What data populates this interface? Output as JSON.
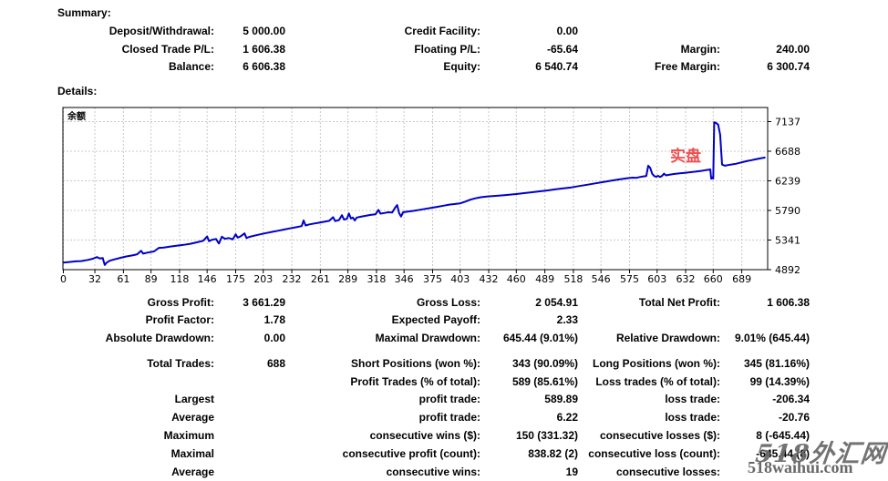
{
  "summary": {
    "heading": "Summary:",
    "rows": [
      {
        "cells": [
          "Deposit/Withdrawal:",
          "5 000.00",
          "Credit Facility:",
          "0.00",
          "",
          ""
        ]
      },
      {
        "cells": [
          "Closed Trade P/L:",
          "1 606.38",
          "Floating P/L:",
          "-65.64",
          "Margin:",
          "240.00"
        ]
      },
      {
        "cells": [
          "Balance:",
          "6 606.38",
          "Equity:",
          "6 540.74",
          "Free Margin:",
          "6 300.74"
        ]
      }
    ]
  },
  "details": {
    "heading": "Details:",
    "rows": [
      {
        "y": 324,
        "cells": [
          "Gross Profit:",
          "3 661.29",
          "Gross Loss:",
          "2 054.91",
          "Total Net Profit:",
          "1 606.38"
        ]
      },
      {
        "y": 343,
        "cells": [
          "Profit Factor:",
          "1.78",
          "Expected Payoff:",
          "2.33",
          "",
          ""
        ]
      },
      {
        "y": 363,
        "cells": [
          "Absolute Drawdown:",
          "0.00",
          "Maximal Drawdown:",
          "645.44 (9.01%)",
          "Relative Drawdown:",
          "9.01% (645.44)"
        ]
      },
      {
        "y": 391,
        "cells": [
          "Total Trades:",
          "688",
          "Short Positions (won %):",
          "343 (90.09%)",
          "Long Positions (won %):",
          "345 (81.16%)"
        ]
      },
      {
        "y": 411,
        "cells": [
          "",
          "",
          "Profit Trades (% of total):",
          "589 (85.61%)",
          "Loss trades (% of total):",
          "99 (14.39%)"
        ]
      },
      {
        "y": 430,
        "cells": [
          "Largest",
          "",
          "profit trade:",
          "589.89",
          "loss trade:",
          "-206.34"
        ]
      },
      {
        "y": 450,
        "cells": [
          "Average",
          "",
          "profit trade:",
          "6.22",
          "loss trade:",
          "-20.76"
        ]
      },
      {
        "y": 470,
        "cells": [
          "Maximum",
          "",
          "consecutive wins ($):",
          "150 (331.32)",
          "consecutive losses ($):",
          "8 (-645.44)"
        ]
      },
      {
        "y": 490,
        "cells": [
          "Maximal",
          "",
          "consecutive profit (count):",
          "838.82 (2)",
          "consecutive loss (count):",
          "-645.44 (8)"
        ]
      },
      {
        "y": 510,
        "cells": [
          "Average",
          "",
          "consecutive wins:",
          "19",
          "consecutive losses:",
          ""
        ]
      }
    ]
  },
  "chart_data": {
    "type": "line",
    "title": "余额",
    "annotation": {
      "text": "实盘",
      "color": "#ef4f4f"
    },
    "line_color": "#0000c8",
    "grid_color": "#c8c8c8",
    "frame_color": "#000000",
    "legend_position": "top-left",
    "grid": true,
    "x_ticks": [
      0,
      32,
      61,
      89,
      118,
      146,
      175,
      203,
      232,
      261,
      289,
      318,
      346,
      375,
      403,
      432,
      460,
      489,
      518,
      546,
      575,
      603,
      632,
      660,
      689
    ],
    "y_ticks": [
      4892,
      5341,
      5790,
      6239,
      6688,
      7137
    ],
    "xlim": [
      0,
      714
    ],
    "ylim": [
      4892,
      7351
    ],
    "series": [
      {
        "name": "Balance",
        "points": [
          [
            0,
            5000
          ],
          [
            6,
            5008
          ],
          [
            12,
            5018
          ],
          [
            18,
            5022
          ],
          [
            25,
            5040
          ],
          [
            30,
            5058
          ],
          [
            34,
            5082
          ],
          [
            37,
            5062
          ],
          [
            40,
            5068
          ],
          [
            42,
            4962
          ],
          [
            44,
            4998
          ],
          [
            47,
            5028
          ],
          [
            52,
            5048
          ],
          [
            58,
            5072
          ],
          [
            64,
            5092
          ],
          [
            70,
            5108
          ],
          [
            75,
            5125
          ],
          [
            79,
            5178
          ],
          [
            81,
            5135
          ],
          [
            86,
            5152
          ],
          [
            92,
            5168
          ],
          [
            97,
            5222
          ],
          [
            102,
            5228
          ],
          [
            108,
            5240
          ],
          [
            115,
            5255
          ],
          [
            122,
            5268
          ],
          [
            129,
            5285
          ],
          [
            136,
            5308
          ],
          [
            142,
            5330
          ],
          [
            146,
            5395
          ],
          [
            148,
            5325
          ],
          [
            151,
            5345
          ],
          [
            155,
            5358
          ],
          [
            158,
            5288
          ],
          [
            161,
            5392
          ],
          [
            164,
            5360
          ],
          [
            168,
            5372
          ],
          [
            172,
            5352
          ],
          [
            175,
            5428
          ],
          [
            177,
            5378
          ],
          [
            180,
            5398
          ],
          [
            184,
            5442
          ],
          [
            186,
            5372
          ],
          [
            189,
            5390
          ],
          [
            194,
            5408
          ],
          [
            200,
            5428
          ],
          [
            206,
            5448
          ],
          [
            212,
            5465
          ],
          [
            218,
            5482
          ],
          [
            224,
            5500
          ],
          [
            230,
            5518
          ],
          [
            236,
            5535
          ],
          [
            242,
            5552
          ],
          [
            244,
            5638
          ],
          [
            246,
            5562
          ],
          [
            250,
            5578
          ],
          [
            255,
            5592
          ],
          [
            260,
            5605
          ],
          [
            265,
            5618
          ],
          [
            270,
            5632
          ],
          [
            274,
            5688
          ],
          [
            276,
            5628
          ],
          [
            280,
            5645
          ],
          [
            283,
            5718
          ],
          [
            285,
            5652
          ],
          [
            288,
            5662
          ],
          [
            290,
            5745
          ],
          [
            292,
            5668
          ],
          [
            294,
            5682
          ],
          [
            296,
            5638
          ],
          [
            298,
            5682
          ],
          [
            302,
            5695
          ],
          [
            307,
            5708
          ],
          [
            312,
            5722
          ],
          [
            317,
            5732
          ],
          [
            320,
            5798
          ],
          [
            322,
            5742
          ],
          [
            326,
            5752
          ],
          [
            330,
            5762
          ],
          [
            334,
            5758
          ],
          [
            337,
            5835
          ],
          [
            339,
            5872
          ],
          [
            341,
            5748
          ],
          [
            343,
            5698
          ],
          [
            345,
            5762
          ],
          [
            350,
            5772
          ],
          [
            356,
            5785
          ],
          [
            362,
            5800
          ],
          [
            368,
            5815
          ],
          [
            374,
            5830
          ],
          [
            380,
            5845
          ],
          [
            386,
            5862
          ],
          [
            392,
            5878
          ],
          [
            398,
            5888
          ],
          [
            403,
            5898
          ],
          [
            408,
            5922
          ],
          [
            413,
            5952
          ],
          [
            418,
            5972
          ],
          [
            424,
            5990
          ],
          [
            430,
            6000
          ],
          [
            436,
            6008
          ],
          [
            442,
            6015
          ],
          [
            448,
            6022
          ],
          [
            454,
            6030
          ],
          [
            460,
            6038
          ],
          [
            468,
            6052
          ],
          [
            476,
            6066
          ],
          [
            484,
            6080
          ],
          [
            492,
            6094
          ],
          [
            500,
            6110
          ],
          [
            508,
            6124
          ],
          [
            516,
            6140
          ],
          [
            524,
            6160
          ],
          [
            532,
            6180
          ],
          [
            540,
            6200
          ],
          [
            548,
            6220
          ],
          [
            556,
            6240
          ],
          [
            564,
            6260
          ],
          [
            572,
            6278
          ],
          [
            578,
            6288
          ],
          [
            582,
            6284
          ],
          [
            586,
            6298
          ],
          [
            590,
            6308
          ],
          [
            592,
            6312
          ],
          [
            594,
            6468
          ],
          [
            596,
            6435
          ],
          [
            598,
            6348
          ],
          [
            600,
            6312
          ],
          [
            602,
            6300
          ],
          [
            604,
            6315
          ],
          [
            606,
            6298
          ],
          [
            608,
            6312
          ],
          [
            610,
            6348
          ],
          [
            612,
            6322
          ],
          [
            615,
            6330
          ],
          [
            620,
            6342
          ],
          [
            626,
            6352
          ],
          [
            632,
            6362
          ],
          [
            638,
            6372
          ],
          [
            644,
            6382
          ],
          [
            650,
            6395
          ],
          [
            654,
            6405
          ],
          [
            657,
            6412
          ],
          [
            658,
            6270
          ],
          [
            659,
            6292
          ],
          [
            660,
            6272
          ],
          [
            661,
            7128
          ],
          [
            663,
            7115
          ],
          [
            665,
            7092
          ],
          [
            667,
            6940
          ],
          [
            669,
            6485
          ],
          [
            672,
            6468
          ],
          [
            675,
            6478
          ],
          [
            679,
            6488
          ],
          [
            683,
            6498
          ],
          [
            687,
            6512
          ],
          [
            691,
            6528
          ],
          [
            695,
            6542
          ],
          [
            699,
            6552
          ],
          [
            703,
            6565
          ],
          [
            707,
            6578
          ],
          [
            711,
            6588
          ],
          [
            713,
            6592
          ]
        ]
      }
    ]
  },
  "watermark": {
    "line1": "518外汇网",
    "line2": "518waihui.com"
  }
}
